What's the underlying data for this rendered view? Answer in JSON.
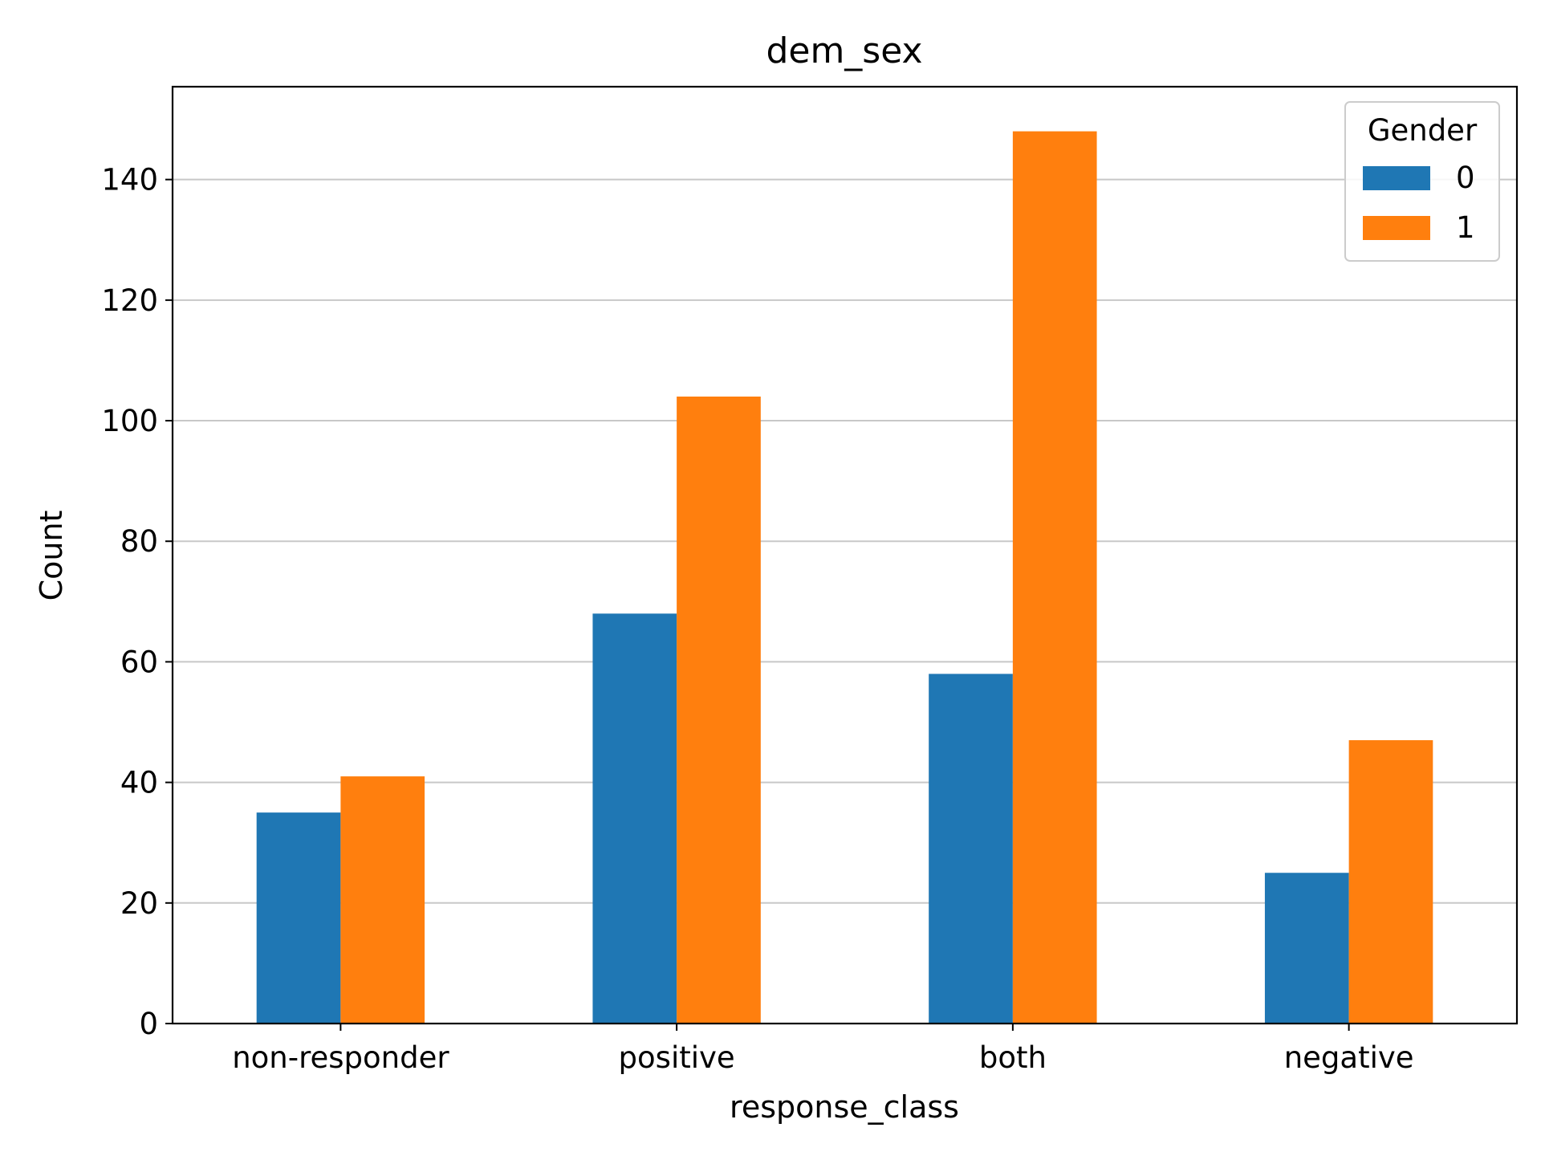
{
  "chart_data": {
    "type": "bar",
    "title": "dem_sex",
    "xlabel": "response_class",
    "ylabel": "Count",
    "categories": [
      "non-responder",
      "positive",
      "both",
      "negative"
    ],
    "series": [
      {
        "name": "0",
        "values": [
          35,
          68,
          58,
          25
        ],
        "color": "#1f77b4"
      },
      {
        "name": "1",
        "values": [
          41,
          104,
          148,
          47
        ],
        "color": "#ff7f0e"
      }
    ],
    "ylim": [
      0,
      155.4
    ],
    "yticks": [
      0,
      20,
      40,
      60,
      80,
      100,
      120,
      140
    ],
    "grid": "y",
    "legend": {
      "title": "Gender",
      "position": "top-right"
    }
  }
}
